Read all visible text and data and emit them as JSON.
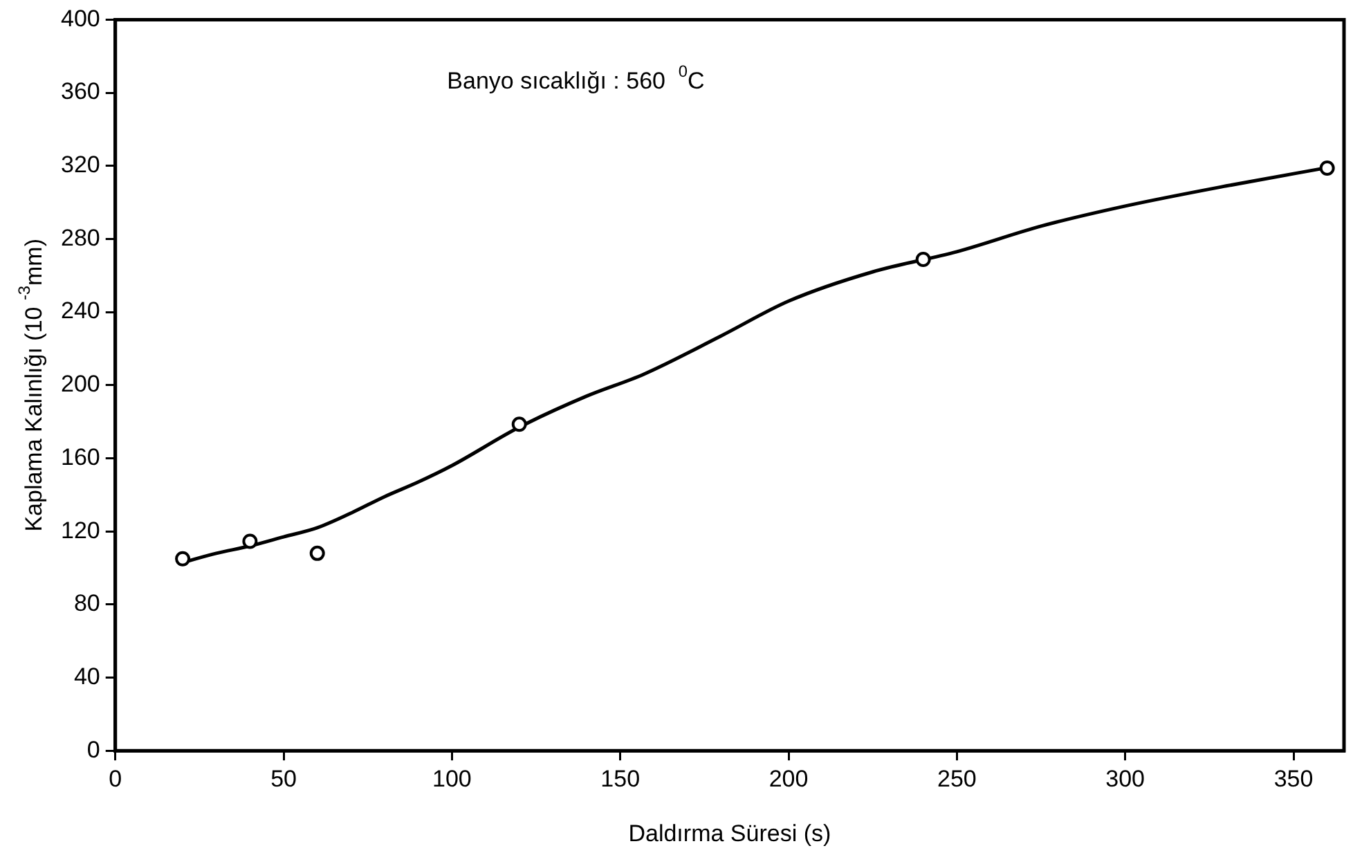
{
  "chart_data": {
    "type": "scatter",
    "xlabel": "Daldırma Süresi (s)",
    "ylabel": "Kaplama Kalınlığı (10 $^{-3}$mm)",
    "annotations": [
      "Banyo sıcaklığı : 560  $^{0}$C"
    ],
    "series": [
      {
        "color": "#000000",
        "x": [
          20,
          40,
          60,
          120,
          240,
          360
        ],
        "values": [
          105,
          114.6,
          108,
          178.6,
          268.8,
          318.8
        ]
      },
      {
        "type": "line",
        "color": "#000000",
        "marker": "none",
        "x": [
          20,
          30,
          40,
          50,
          60,
          70,
          80,
          90,
          100,
          120,
          140,
          157,
          180,
          200,
          225,
          250,
          275,
          300,
          330,
          360
        ],
        "values": [
          103,
          108,
          112,
          117,
          122,
          130,
          139,
          147,
          156,
          177,
          194,
          206,
          227,
          246,
          262,
          273,
          287,
          298,
          309,
          319
        ]
      }
    ],
    "marker": "circle",
    "xlim": [
      0,
      365
    ],
    "xticks": [
      0,
      50,
      100,
      150,
      200,
      250,
      300,
      350
    ],
    "ylim": [
      0,
      400
    ],
    "yticks": [
      0,
      40,
      80,
      120,
      160,
      200,
      240,
      280,
      320,
      360,
      400
    ],
    "grid": false,
    "legend": false
  }
}
